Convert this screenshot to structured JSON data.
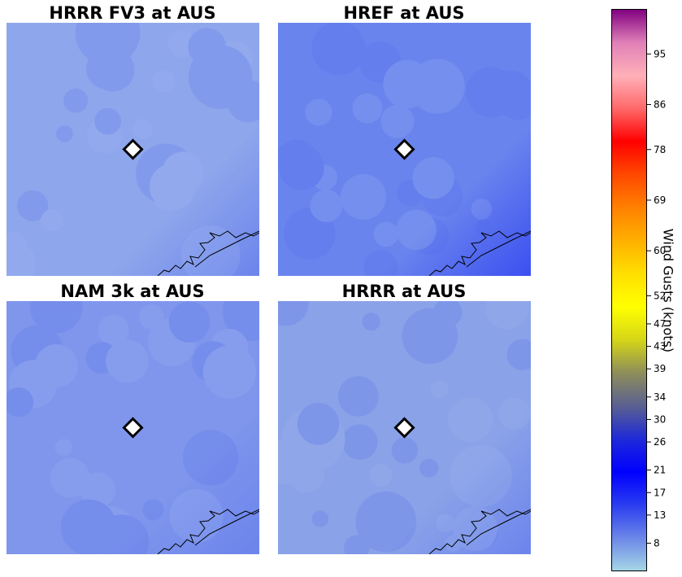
{
  "chart_data": {
    "type": "heatmap",
    "panels": [
      {
        "title": "HRRR FV3 at AUS",
        "base_color": "#8ea6ec",
        "mean_gust": 6
      },
      {
        "title": "HREF at AUS",
        "base_color": "#6a84ee",
        "mean_gust": 9
      },
      {
        "title": "NAM 3k at AUS",
        "base_color": "#7f96ec",
        "mean_gust": 8
      },
      {
        "title": "HRRR at AUS",
        "base_color": "#8aa2e8",
        "mean_gust": 7
      }
    ],
    "marker": {
      "label": "AUS",
      "shape": "diamond"
    },
    "colorbar": {
      "label": "Wind Gusts (knots)",
      "ticks": [
        8,
        13,
        17,
        21,
        26,
        30,
        34,
        39,
        43,
        47,
        52,
        60,
        69,
        78,
        86,
        95
      ],
      "range": [
        3,
        103
      ],
      "colors": [
        "#a6d7e6",
        "#6b86e8",
        "#2a3cf0",
        "#0000ff",
        "#1f2ad8",
        "#5a6090",
        "#8e8e5a",
        "#d6d618",
        "#ffff00",
        "#ffdf00",
        "#ffb000",
        "#ff8000",
        "#ff4800",
        "#ff0000",
        "#ff6a6a",
        "#ffb0b8",
        "#e080b8",
        "#800080"
      ]
    }
  }
}
